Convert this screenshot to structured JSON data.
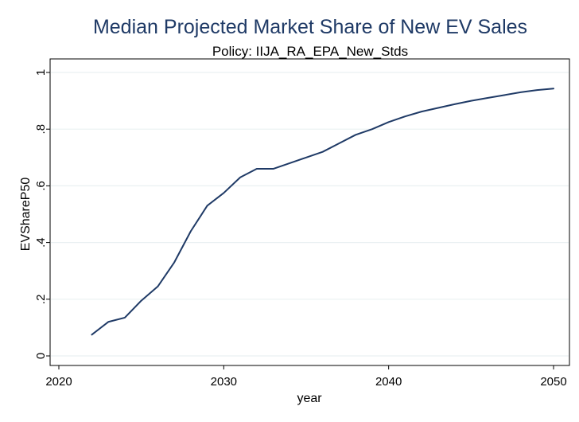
{
  "chart_data": {
    "type": "line",
    "title": "Median Projected Market Share of New EV Sales",
    "subtitle": "Policy: IIJA_RA_EPA_New_Stds",
    "xlabel": "year",
    "ylabel": "EVShareP50",
    "xlim": [
      2019.5,
      2050.5
    ],
    "ylim": [
      0,
      1
    ],
    "xticks": [
      2020,
      2030,
      2040,
      2050
    ],
    "xtick_labels": [
      "2020",
      "2030",
      "2040",
      "2050"
    ],
    "yticks": [
      0,
      0.2,
      0.4,
      0.6,
      0.8,
      1
    ],
    "ytick_labels": [
      "0",
      ".2",
      ".4",
      ".6",
      ".8",
      "1"
    ],
    "grid": true,
    "colors": {
      "title": "#1f3a66",
      "series": "#1f3a66",
      "grid": "#eaf0f2"
    },
    "series": [
      {
        "x": [
          2022,
          2023,
          2024,
          2025,
          2026,
          2027,
          2028,
          2029,
          2030,
          2031,
          2032,
          2033,
          2034,
          2035,
          2036,
          2037,
          2038,
          2039,
          2040,
          2041,
          2042,
          2043,
          2044,
          2045,
          2046,
          2047,
          2048,
          2049,
          2050
        ],
        "values": [
          0.075,
          0.12,
          0.135,
          0.195,
          0.245,
          0.33,
          0.44,
          0.53,
          0.575,
          0.63,
          0.66,
          0.66,
          0.68,
          0.7,
          0.72,
          0.75,
          0.78,
          0.8,
          0.825,
          0.845,
          0.862,
          0.875,
          0.888,
          0.9,
          0.91,
          0.92,
          0.93,
          0.938,
          0.943
        ]
      }
    ]
  }
}
